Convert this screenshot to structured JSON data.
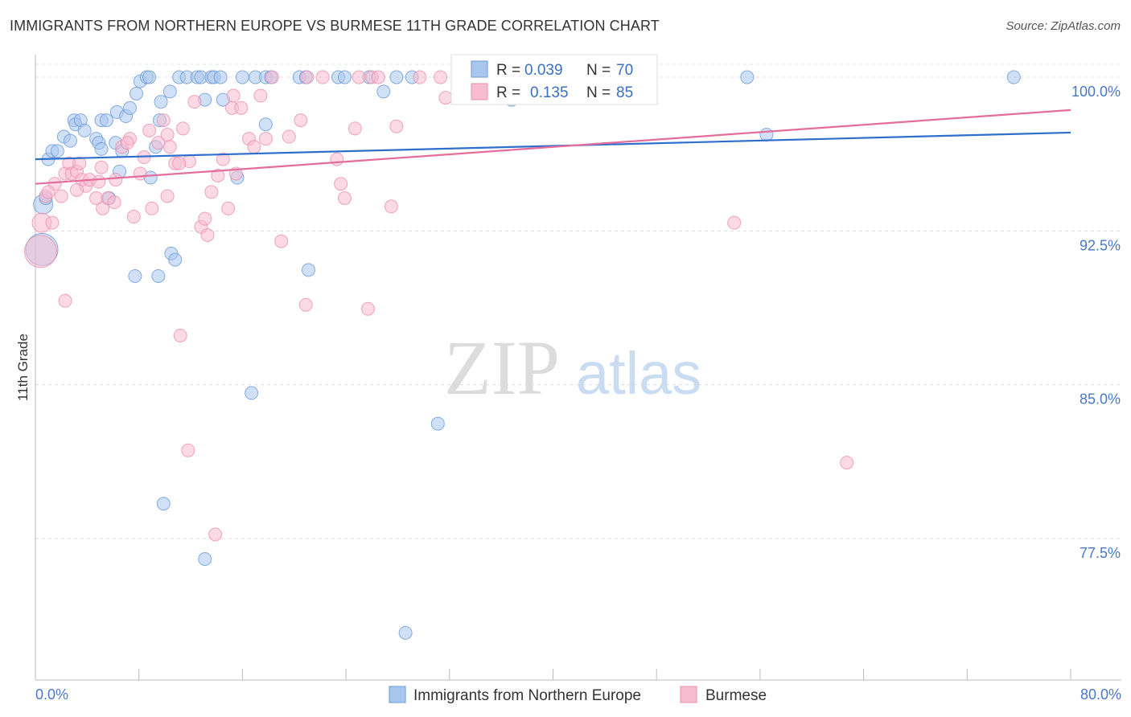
{
  "title": "IMMIGRANTS FROM NORTHERN EUROPE VS BURMESE 11TH GRADE CORRELATION CHART",
  "source": "Source: ZipAtlas.com",
  "watermark": {
    "zip": "ZIP",
    "atlas": "atlas"
  },
  "colors": {
    "blue_fill": "#a9c6ef",
    "blue_stroke": "#6a9ad8",
    "blue_line": "#2f6fcc",
    "pink_fill": "#f7bcd0",
    "pink_stroke": "#ec8fb0",
    "pink_line": "#e46d9b",
    "value_text": "#3a6fc4",
    "grid": "#dddddd"
  },
  "legend": {
    "r_label": "R =",
    "n_label": "N =",
    "series1": {
      "r": "0.039",
      "n": "70"
    },
    "series2": {
      "r": "0.135",
      "n": "85"
    }
  },
  "chart_data": {
    "type": "scatter",
    "title": "IMMIGRANTS FROM NORTHERN EUROPE VS BURMESE 11TH GRADE CORRELATION CHART",
    "xlabel": "",
    "ylabel": "11th Grade",
    "xlim": [
      0,
      80
    ],
    "ylim": [
      70.6,
      101.1
    ],
    "x_tick_labels": [
      "0.0%",
      "80.0%"
    ],
    "y_ticks": [
      100.0,
      92.5,
      85.0,
      77.5
    ],
    "y_tick_labels": [
      "100.0%",
      "92.5%",
      "85.0%",
      "77.5%"
    ],
    "series": [
      {
        "name": "Immigrants from Northern Europe",
        "color": "blue",
        "trend": {
          "x0": 0,
          "y0": 96.0,
          "x1": 80,
          "y1": 97.3
        },
        "points": [
          [
            0.5,
            91.6,
            22
          ],
          [
            0.6,
            93.8,
            14
          ],
          [
            0.8,
            94.1,
            10
          ],
          [
            1.0,
            96.0,
            10
          ],
          [
            1.3,
            96.4,
            10
          ],
          [
            1.7,
            96.4,
            10
          ],
          [
            2.2,
            97.1,
            10
          ],
          [
            2.7,
            96.9,
            10
          ],
          [
            3.0,
            97.9,
            10
          ],
          [
            3.1,
            97.7,
            10
          ],
          [
            3.5,
            97.9,
            10
          ],
          [
            3.8,
            97.4,
            10
          ],
          [
            4.7,
            97.0,
            10
          ],
          [
            4.9,
            96.8,
            10
          ],
          [
            5.1,
            96.5,
            10
          ],
          [
            5.1,
            97.9,
            10
          ],
          [
            5.5,
            97.9,
            10
          ],
          [
            6.2,
            96.8,
            10
          ],
          [
            6.3,
            98.3,
            10
          ],
          [
            6.5,
            95.4,
            10
          ],
          [
            6.7,
            96.4,
            10
          ],
          [
            7.0,
            98.1,
            10
          ],
          [
            7.3,
            98.5,
            10
          ],
          [
            7.8,
            99.2,
            10
          ],
          [
            8.1,
            99.8,
            10
          ],
          [
            8.6,
            100.0,
            10
          ],
          [
            8.8,
            100.0,
            10
          ],
          [
            8.9,
            95.1,
            10
          ],
          [
            9.3,
            96.6,
            10
          ],
          [
            9.6,
            97.9,
            10
          ],
          [
            9.7,
            98.8,
            10
          ],
          [
            10.4,
            99.3,
            10
          ],
          [
            11.1,
            100.0,
            10
          ],
          [
            11.7,
            100.0,
            10
          ],
          [
            12.5,
            100.0,
            10
          ],
          [
            12.8,
            100.0,
            10
          ],
          [
            13.6,
            100.0,
            10
          ],
          [
            13.8,
            100.0,
            10
          ],
          [
            14.3,
            100.0,
            10
          ],
          [
            16.0,
            100.0,
            10
          ],
          [
            17.0,
            100.0,
            10
          ],
          [
            17.8,
            100.0,
            10
          ],
          [
            18.2,
            100.0,
            10
          ],
          [
            20.4,
            100.0,
            10
          ],
          [
            20.9,
            100.0,
            10
          ],
          [
            23.4,
            100.0,
            10
          ],
          [
            23.9,
            100.0,
            10
          ],
          [
            25.8,
            100.0,
            10
          ],
          [
            26.9,
            99.3,
            10
          ],
          [
            27.9,
            100.0,
            10
          ],
          [
            29.1,
            100.0,
            10
          ],
          [
            36.8,
            98.9,
            10
          ],
          [
            55.0,
            100.0,
            10
          ],
          [
            56.5,
            97.2,
            10
          ],
          [
            75.6,
            100.0,
            10
          ],
          [
            5.7,
            94.1,
            10
          ],
          [
            7.7,
            90.3,
            10
          ],
          [
            9.5,
            90.3,
            10
          ],
          [
            10.5,
            91.4,
            10
          ],
          [
            10.8,
            91.1,
            10
          ],
          [
            13.1,
            98.9,
            10
          ],
          [
            14.5,
            98.9,
            10
          ],
          [
            15.6,
            95.1,
            10
          ],
          [
            17.8,
            97.7,
            10
          ],
          [
            21.1,
            90.6,
            10
          ],
          [
            16.7,
            84.6,
            10
          ],
          [
            31.1,
            83.1,
            10
          ],
          [
            9.9,
            79.2,
            10
          ],
          [
            13.1,
            76.5,
            10
          ],
          [
            28.6,
            72.9,
            10
          ]
        ]
      },
      {
        "name": "Burmese",
        "color": "pink",
        "trend": {
          "x0": 0,
          "y0": 94.8,
          "x1": 80,
          "y1": 98.4
        },
        "points": [
          [
            0.4,
            91.5,
            22
          ],
          [
            0.5,
            92.9,
            14
          ],
          [
            0.8,
            94.2,
            10
          ],
          [
            1.3,
            92.9,
            10
          ],
          [
            1.5,
            94.8,
            10
          ],
          [
            2.0,
            94.2,
            10
          ],
          [
            2.3,
            95.3,
            10
          ],
          [
            2.6,
            95.8,
            10
          ],
          [
            2.8,
            95.3,
            10
          ],
          [
            3.2,
            95.4,
            10
          ],
          [
            3.4,
            95.8,
            10
          ],
          [
            3.6,
            95.0,
            10
          ],
          [
            3.9,
            94.7,
            10
          ],
          [
            4.2,
            95.0,
            10
          ],
          [
            4.7,
            94.1,
            10
          ],
          [
            5.1,
            95.6,
            10
          ],
          [
            5.2,
            93.6,
            10
          ],
          [
            5.6,
            94.1,
            10
          ],
          [
            6.2,
            95.0,
            10
          ],
          [
            6.7,
            96.6,
            10
          ],
          [
            7.3,
            97.0,
            10
          ],
          [
            7.6,
            93.2,
            10
          ],
          [
            8.1,
            95.3,
            10
          ],
          [
            8.4,
            96.1,
            10
          ],
          [
            8.8,
            97.4,
            10
          ],
          [
            9.0,
            93.6,
            10
          ],
          [
            9.5,
            96.8,
            10
          ],
          [
            9.9,
            97.9,
            10
          ],
          [
            10.2,
            97.2,
            10
          ],
          [
            10.4,
            96.6,
            10
          ],
          [
            10.8,
            95.8,
            10
          ],
          [
            11.4,
            97.5,
            10
          ],
          [
            11.9,
            95.9,
            10
          ],
          [
            12.3,
            98.8,
            10
          ],
          [
            12.8,
            92.7,
            10
          ],
          [
            13.1,
            93.1,
            10
          ],
          [
            13.3,
            92.3,
            10
          ],
          [
            13.6,
            94.4,
            10
          ],
          [
            14.1,
            95.2,
            10
          ],
          [
            14.5,
            96.0,
            10
          ],
          [
            14.9,
            93.6,
            10
          ],
          [
            15.2,
            98.5,
            10
          ],
          [
            15.3,
            99.1,
            10
          ],
          [
            15.9,
            98.5,
            10
          ],
          [
            16.5,
            97.0,
            10
          ],
          [
            16.9,
            96.6,
            10
          ],
          [
            17.4,
            99.1,
            10
          ],
          [
            17.8,
            97.0,
            10
          ],
          [
            18.3,
            100.0,
            10
          ],
          [
            19.0,
            92.0,
            10
          ],
          [
            19.6,
            97.1,
            10
          ],
          [
            20.5,
            97.9,
            10
          ],
          [
            21.0,
            100.0,
            10
          ],
          [
            22.2,
            100.0,
            10
          ],
          [
            23.3,
            96.0,
            10
          ],
          [
            23.6,
            94.8,
            10
          ],
          [
            23.9,
            94.1,
            10
          ],
          [
            24.7,
            97.5,
            10
          ],
          [
            25.0,
            100.0,
            10
          ],
          [
            26.0,
            100.0,
            10
          ],
          [
            26.5,
            100.0,
            10
          ],
          [
            27.5,
            93.7,
            10
          ],
          [
            27.9,
            97.6,
            10
          ],
          [
            29.7,
            100.0,
            10
          ],
          [
            31.3,
            100.0,
            10
          ],
          [
            31.7,
            99.0,
            10
          ],
          [
            32.7,
            100.0,
            10
          ],
          [
            36.7,
            100.0,
            10
          ],
          [
            54.0,
            92.9,
            10
          ],
          [
            2.3,
            89.1,
            10
          ],
          [
            11.2,
            87.4,
            10
          ],
          [
            20.9,
            88.9,
            10
          ],
          [
            25.7,
            88.7,
            10
          ],
          [
            11.8,
            81.8,
            10
          ],
          [
            13.9,
            77.7,
            10
          ],
          [
            62.7,
            81.2,
            10
          ],
          [
            7.1,
            96.8,
            10
          ],
          [
            11.1,
            95.8,
            10
          ],
          [
            4.9,
            94.9,
            10
          ],
          [
            10.2,
            94.2,
            10
          ],
          [
            6.1,
            93.9,
            10
          ],
          [
            3.2,
            94.5,
            10
          ],
          [
            1.0,
            94.4,
            10
          ],
          [
            15.5,
            95.3,
            10
          ],
          [
            34.0,
            100.0,
            10
          ]
        ]
      }
    ]
  }
}
